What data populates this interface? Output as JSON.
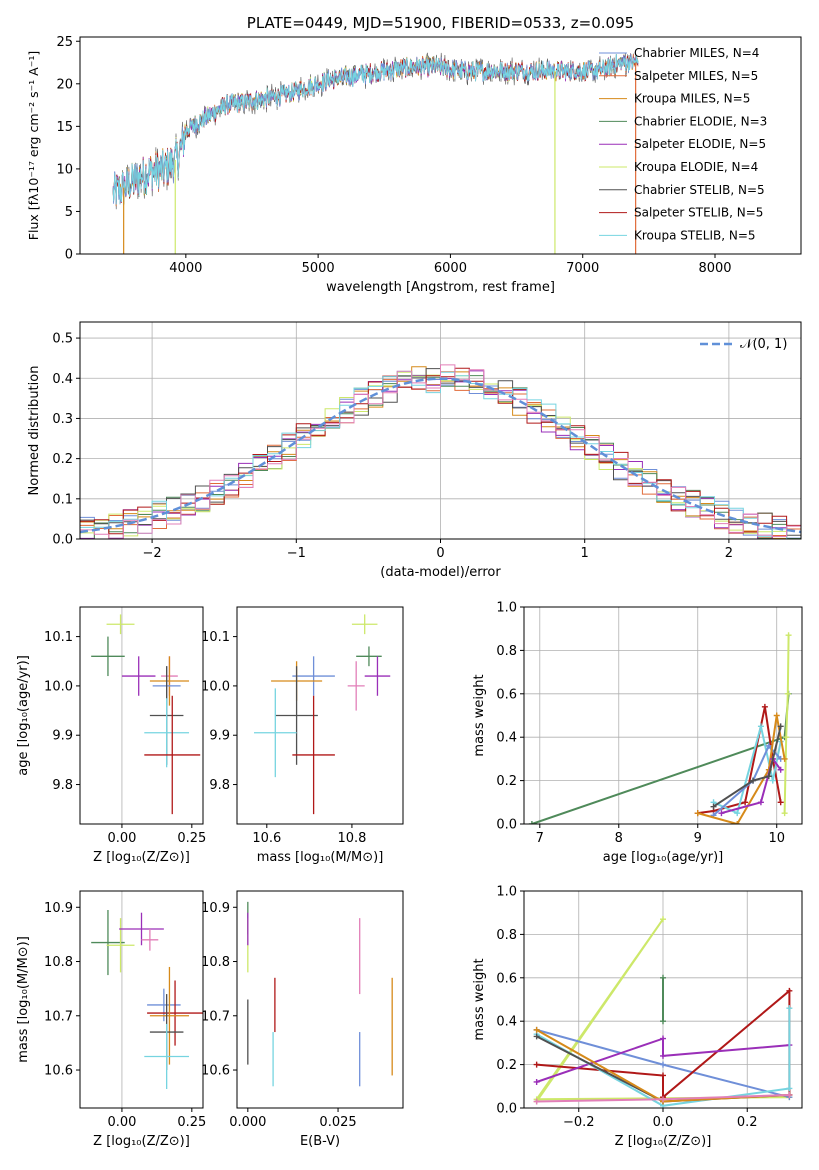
{
  "title": "PLATE=0449, MJD=51900, FIBERID=0533, z=0.095",
  "colors": {
    "Chabrier MILES": "#6f8fd8",
    "Salpeter MILES": "#e06b3a",
    "Kroupa MILES": "#d68a1a",
    "Chabrier ELODIE": "#4f8a5a",
    "Salpeter ELODIE": "#9a2fb8",
    "Kroupa ELODIE": "#cde86a",
    "Chabrier STELIB": "#505050",
    "Salpeter STELIB": "#b01818",
    "Kroupa STELIB": "#76d4e0",
    "Extra": "#e27fb8",
    "Normal": "#6090d8"
  },
  "chart_data": [
    {
      "id": "spectrum",
      "type": "line",
      "title": "PLATE=0449, MJD=51900, FIBERID=0533, z=0.095",
      "xlabel": "wavelength [Angstrom, rest frame]",
      "ylabel": "Flux [fλ10⁻¹⁷ erg cm⁻² s⁻¹ A⁻¹]",
      "xlim": [
        3200,
        8650
      ],
      "ylim": [
        0,
        25.5
      ],
      "xticks": [
        "4000",
        "5000",
        "6000",
        "7000",
        "8000"
      ],
      "yticks": [
        "0",
        "5",
        "10",
        "15",
        "20",
        "25"
      ],
      "legend_position": "upper right",
      "series": [
        {
          "name": "Chabrier MILES, N_SSP=4"
        },
        {
          "name": "Salpeter MILES, N_SSP=5"
        },
        {
          "name": "Kroupa MILES, N_SSP=5"
        },
        {
          "name": "Chabrier ELODIE, N_SSP=3"
        },
        {
          "name": "Salpeter ELODIE, N_SSP=5"
        },
        {
          "name": "Kroupa ELODIE, N_SSP=4"
        },
        {
          "name": "Chabrier STELIB, N_SSP=5"
        },
        {
          "name": "Salpeter STELIB, N_SSP=5"
        },
        {
          "name": "Kroupa STELIB, N_SSP=5"
        }
      ],
      "continuum": {
        "x": [
          3450,
          3550,
          3700,
          3850,
          3950,
          4000,
          4100,
          4300,
          4500,
          4700,
          4900,
          5100,
          5300,
          5500,
          5700,
          5900,
          6100,
          6300,
          6500,
          6700,
          6900,
          7100,
          7300,
          7420
        ],
        "y": [
          7,
          8,
          9.5,
          10,
          11.5,
          14.5,
          15.5,
          17.5,
          18,
          18.5,
          19.5,
          20.5,
          21,
          21.5,
          22,
          22,
          21.5,
          21.5,
          21.5,
          21.5,
          21.5,
          21.5,
          22.5,
          22.5
        ]
      }
    },
    {
      "id": "residuals",
      "type": "histogram",
      "xlabel": "(data-model)/error",
      "ylabel": "Normed distribution",
      "xlim": [
        -2.5,
        2.5
      ],
      "ylim": [
        0,
        0.54
      ],
      "xticks": [
        "−2",
        "−1",
        "0",
        "1",
        "2"
      ],
      "yticks": [
        "0.0",
        "0.1",
        "0.2",
        "0.3",
        "0.4",
        "0.5"
      ],
      "normal_curve": {
        "label": "𝒩(0, 1)",
        "mean": 0,
        "sigma": 1
      },
      "bin_width": 0.1,
      "envelope": {
        "x": [
          -2.5,
          -2.0,
          -1.5,
          -1.0,
          -0.5,
          0.0,
          0.5,
          1.0,
          1.5,
          2.0,
          2.5
        ],
        "y": [
          0.018,
          0.05,
          0.13,
          0.24,
          0.35,
          0.4,
          0.35,
          0.24,
          0.13,
          0.05,
          0.018
        ]
      }
    },
    {
      "id": "z-age",
      "type": "errorbar",
      "xlabel": "Z [log₁₀(Z/Z⊙)]",
      "ylabel": "age  [log₁₀(age/yr)]",
      "xlim": [
        -0.15,
        0.29
      ],
      "ylim": [
        9.72,
        10.16
      ],
      "xticks": [
        "0.00",
        "0.25"
      ],
      "yticks": [
        "9.8",
        "9.9",
        "10.0",
        "10.1"
      ],
      "points": [
        {
          "series": "Kroupa ELODIE",
          "x": -0.005,
          "y": 10.125,
          "xerr": 0.05,
          "yerr": 0.02
        },
        {
          "series": "Chabrier ELODIE",
          "x": -0.05,
          "y": 10.06,
          "xerr": 0.06,
          "yerr": 0.04
        },
        {
          "series": "Salpeter ELODIE",
          "x": 0.06,
          "y": 10.02,
          "xerr": 0.06,
          "yerr": 0.04
        },
        {
          "series": "Extra",
          "x": 0.17,
          "y": 10.02,
          "xerr": 0.03,
          "yerr": 0.04
        },
        {
          "series": "Kroupa MILES",
          "x": 0.17,
          "y": 10.01,
          "xerr": 0.07,
          "yerr": 0.05
        },
        {
          "series": "Chabrier MILES",
          "x": 0.16,
          "y": 10.0,
          "xerr": 0.05,
          "yerr": 0.04
        },
        {
          "series": "Chabrier STELIB",
          "x": 0.16,
          "y": 9.94,
          "xerr": 0.06,
          "yerr": 0.1
        },
        {
          "series": "Kroupa STELIB",
          "x": 0.16,
          "y": 9.905,
          "xerr": 0.08,
          "yerr": 0.07
        },
        {
          "series": "Salpeter STELIB",
          "x": 0.18,
          "y": 9.86,
          "xerr": 0.1,
          "yerr": 0.12
        }
      ]
    },
    {
      "id": "mass-age",
      "type": "errorbar",
      "xlabel": "mass [log₁₀(M/M⊙)]",
      "ylabel": "",
      "xlim": [
        10.53,
        10.92
      ],
      "ylim": [
        9.72,
        10.16
      ],
      "xticks": [
        "10.6",
        "10.8"
      ],
      "yticks": [
        "9.8",
        "9.9",
        "10.0",
        "10.1"
      ],
      "points": [
        {
          "series": "Kroupa ELODIE",
          "x": 10.83,
          "y": 10.125,
          "xerr": 0.03,
          "yerr": 0.02
        },
        {
          "series": "Chabrier ELODIE",
          "x": 10.84,
          "y": 10.06,
          "xerr": 0.03,
          "yerr": 0.02
        },
        {
          "series": "Salpeter ELODIE",
          "x": 10.86,
          "y": 10.02,
          "xerr": 0.03,
          "yerr": 0.04
        },
        {
          "series": "Extra",
          "x": 10.81,
          "y": 10.0,
          "xerr": 0.02,
          "yerr": 0.05
        },
        {
          "series": "Chabrier MILES",
          "x": 10.71,
          "y": 10.02,
          "xerr": 0.05,
          "yerr": 0.04
        },
        {
          "series": "Kroupa MILES",
          "x": 10.67,
          "y": 10.01,
          "xerr": 0.06,
          "yerr": 0.04
        },
        {
          "series": "Chabrier STELIB",
          "x": 10.67,
          "y": 9.94,
          "xerr": 0.05,
          "yerr": 0.1
        },
        {
          "series": "Kroupa STELIB",
          "x": 10.62,
          "y": 9.905,
          "xerr": 0.05,
          "yerr": 0.09
        },
        {
          "series": "Salpeter STELIB",
          "x": 10.71,
          "y": 9.86,
          "xerr": 0.05,
          "yerr": 0.12
        }
      ]
    },
    {
      "id": "age-weight",
      "type": "line",
      "xlabel": "age  [log₁₀(age/yr)]",
      "ylabel": "mass weight",
      "xlim": [
        6.8,
        10.32
      ],
      "ylim": [
        0,
        1.0
      ],
      "xticks": [
        "7",
        "8",
        "9",
        "10"
      ],
      "yticks": [
        "0.0",
        "0.2",
        "0.4",
        "0.6",
        "0.8",
        "1.0"
      ],
      "series": [
        {
          "series": "Chabrier ELODIE",
          "x": [
            6.9,
            10.1,
            10.15
          ],
          "y": [
            0.0,
            0.4,
            0.6
          ]
        },
        {
          "series": "Kroupa ELODIE",
          "x": [
            10.1,
            10.12,
            10.14,
            10.15
          ],
          "y": [
            0.05,
            0.4,
            0.6,
            0.87
          ]
        },
        {
          "series": "Salpeter STELIB",
          "x": [
            9.0,
            9.2,
            9.6,
            9.85,
            9.95,
            10.05
          ],
          "y": [
            0.05,
            0.06,
            0.1,
            0.54,
            0.3,
            0.1
          ]
        },
        {
          "series": "Kroupa STELIB",
          "x": [
            9.2,
            9.5,
            9.8,
            9.95,
            10.05
          ],
          "y": [
            0.1,
            0.05,
            0.45,
            0.2,
            0.38
          ]
        },
        {
          "series": "Chabrier MILES",
          "x": [
            9.2,
            9.7,
            9.9,
            10.05
          ],
          "y": [
            0.04,
            0.2,
            0.36,
            0.3
          ]
        },
        {
          "series": "Kroupa MILES",
          "x": [
            9.0,
            9.5,
            9.9,
            10.0,
            10.1
          ],
          "y": [
            0.05,
            0.0,
            0.25,
            0.5,
            0.3
          ]
        },
        {
          "series": "Salpeter ELODIE",
          "x": [
            9.3,
            9.8,
            9.95,
            10.05
          ],
          "y": [
            0.05,
            0.1,
            0.3,
            0.25
          ]
        },
        {
          "series": "Chabrier STELIB",
          "x": [
            9.2,
            9.7,
            9.9,
            10.05
          ],
          "y": [
            0.08,
            0.2,
            0.22,
            0.45
          ]
        }
      ]
    },
    {
      "id": "z-mass",
      "type": "errorbar",
      "xlabel": "Z [log₁₀(Z/Z⊙)]",
      "ylabel": "mass [log₁₀(M/M⊙)]",
      "xlim": [
        -0.15,
        0.29
      ],
      "ylim": [
        10.53,
        10.93
      ],
      "xticks": [
        "0.00",
        "0.25"
      ],
      "yticks": [
        "10.6",
        "10.7",
        "10.8",
        "10.9"
      ],
      "points": [
        {
          "series": "Chabrier ELODIE",
          "x": -0.05,
          "y": 10.835,
          "xerr": 0.06,
          "yerr": 0.06
        },
        {
          "series": "Kroupa ELODIE",
          "x": -0.005,
          "y": 10.83,
          "xerr": 0.05,
          "yerr": 0.05
        },
        {
          "series": "Salpeter ELODIE",
          "x": 0.07,
          "y": 10.86,
          "xerr": 0.08,
          "yerr": 0.03
        },
        {
          "series": "Extra",
          "x": 0.1,
          "y": 10.84,
          "xerr": 0.03,
          "yerr": 0.02
        },
        {
          "series": "Chabrier MILES",
          "x": 0.15,
          "y": 10.72,
          "xerr": 0.06,
          "yerr": 0.03
        },
        {
          "series": "Salpeter STELIB",
          "x": 0.19,
          "y": 10.705,
          "xerr": 0.1,
          "yerr": 0.06
        },
        {
          "series": "Kroupa MILES",
          "x": 0.17,
          "y": 10.7,
          "xerr": 0.07,
          "yerr": 0.09
        },
        {
          "series": "Chabrier STELIB",
          "x": 0.16,
          "y": 10.67,
          "xerr": 0.06,
          "yerr": 0.07
        },
        {
          "series": "Kroupa STELIB",
          "x": 0.16,
          "y": 10.625,
          "xerr": 0.08,
          "yerr": 0.06
        }
      ]
    },
    {
      "id": "ebv-mass",
      "type": "errorbar",
      "xlabel": "E(B-V)",
      "ylabel": "",
      "xlim": [
        -0.003,
        0.043
      ],
      "ylim": [
        10.53,
        10.93
      ],
      "xticks": [
        "0.000",
        "0.025"
      ],
      "yticks": [
        "10.6",
        "10.7",
        "10.8",
        "10.9"
      ],
      "points": [
        {
          "series": "Chabrier ELODIE",
          "x": 0.0,
          "y": 10.88,
          "xerr": 0,
          "yerr": 0.03
        },
        {
          "series": "Kroupa ELODIE",
          "x": 0.0,
          "y": 10.83,
          "xerr": 0,
          "yerr": 0.05
        },
        {
          "series": "Salpeter ELODIE",
          "x": 0.0,
          "y": 10.86,
          "xerr": 0,
          "yerr": 0.03
        },
        {
          "series": "Chabrier STELIB",
          "x": 0.0,
          "y": 10.67,
          "xerr": 0,
          "yerr": 0.06
        },
        {
          "series": "Salpeter STELIB",
          "x": 0.0075,
          "y": 10.72,
          "xerr": 0,
          "yerr": 0.05
        },
        {
          "series": "Kroupa STELIB",
          "x": 0.007,
          "y": 10.62,
          "xerr": 0,
          "yerr": 0.05
        },
        {
          "series": "Extra",
          "x": 0.031,
          "y": 10.81,
          "xerr": 0,
          "yerr": 0.07
        },
        {
          "series": "Chabrier MILES",
          "x": 0.031,
          "y": 10.62,
          "xerr": 0,
          "yerr": 0.05
        },
        {
          "series": "Kroupa MILES",
          "x": 0.04,
          "y": 10.68,
          "xerr": 0,
          "yerr": 0.09
        }
      ]
    },
    {
      "id": "z-weight",
      "type": "line",
      "xlabel": "Z [log₁₀(Z/Z⊙)]",
      "ylabel": "mass weight",
      "xlim": [
        -0.33,
        0.33
      ],
      "ylim": [
        0,
        1.0
      ],
      "xticks": [
        "−0.2",
        "0.0",
        "0.2"
      ],
      "yticks": [
        "0.0",
        "0.2",
        "0.4",
        "0.6",
        "0.8",
        "1.0"
      ],
      "series": [
        {
          "series": "Kroupa ELODIE",
          "x": [
            -0.3,
            0.0,
            -0.3,
            0.3
          ],
          "y": [
            0.03,
            0.87,
            0.04,
            0.05
          ]
        },
        {
          "series": "Chabrier MILES",
          "x": [
            -0.3,
            0.0,
            0.3
          ],
          "y": [
            0.36,
            0.2,
            0.05
          ]
        },
        {
          "series": "Salpeter STELIB",
          "x": [
            -0.3,
            0.0,
            0.0,
            0.3,
            0.3
          ],
          "y": [
            0.2,
            0.15,
            0.05,
            0.54,
            0.06
          ]
        },
        {
          "series": "Salpeter ELODIE",
          "x": [
            -0.3,
            0.0,
            0.0,
            0.3
          ],
          "y": [
            0.12,
            0.32,
            0.24,
            0.29
          ]
        },
        {
          "series": "Kroupa STELIB",
          "x": [
            -0.3,
            0.0,
            0.3,
            0.3
          ],
          "y": [
            0.34,
            0.01,
            0.09,
            0.46
          ]
        },
        {
          "series": "Chabrier STELIB",
          "x": [
            -0.3,
            0.0,
            0.3
          ],
          "y": [
            0.33,
            0.03,
            0.06
          ]
        },
        {
          "series": "Kroupa MILES",
          "x": [
            -0.3,
            0.0,
            0.3
          ],
          "y": [
            0.36,
            0.03,
            0.06
          ]
        },
        {
          "series": "Extra",
          "x": [
            -0.3,
            0.0,
            0.3
          ],
          "y": [
            0.03,
            0.04,
            0.06
          ]
        },
        {
          "series": "Chabrier ELODIE",
          "x": [
            0.0,
            0.0
          ],
          "y": [
            0.4,
            0.6
          ]
        }
      ]
    }
  ]
}
